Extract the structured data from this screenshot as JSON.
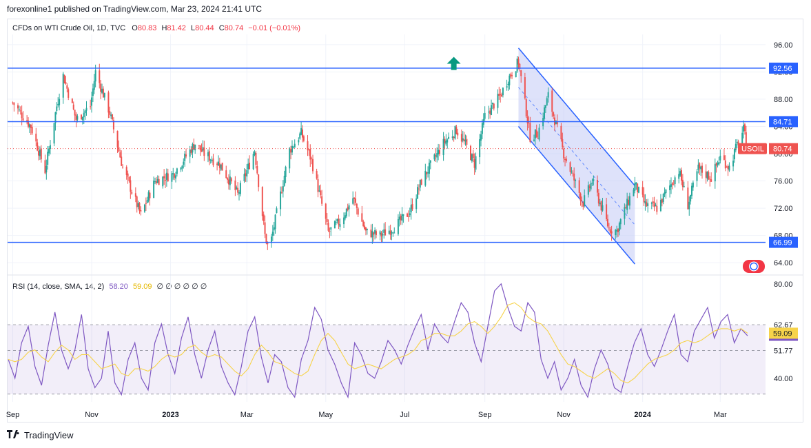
{
  "header": {
    "published": "forexonline1 published on TradingView.com, Mar 23, 2024 21:41 UTC"
  },
  "legend": {
    "symbol": "CFDs on WTI Crude Oil, 1D, TVC",
    "open_label": "O",
    "open": "80.83",
    "high_label": "H",
    "high": "81.42",
    "low_label": "L",
    "low": "80.44",
    "close_label": "C",
    "close": "80.74",
    "change": "−0.01 (−0.01%)"
  },
  "rsi_legend": {
    "label": "RSI (14, close, SMA, 14, 2)",
    "rsi": "58.20",
    "sma": "59.09",
    "empty": "∅ ∅ ∅ ∅ ∅ ∅"
  },
  "footer": {
    "brand": "TradingView"
  },
  "colors": {
    "up": "#26a69a",
    "down": "#ef5350",
    "level_line": "#2962ff",
    "rsi": "#7e57c2",
    "rsi_sma": "#f7d34a",
    "channel_fill": "#c3cbf5"
  },
  "chart_data": [
    {
      "type": "candlestick",
      "title": "",
      "symbol_tag": "USOIL",
      "last_price": 80.74,
      "ylim": [
        62.5,
        97.5
      ],
      "y_ticks": [
        "96.00",
        "92.00",
        "88.00",
        "84.00",
        "80.00",
        "76.00",
        "72.00",
        "68.00",
        "64.00"
      ],
      "x_ticks": [
        {
          "label": "Sep",
          "bold": false
        },
        {
          "label": "Nov",
          "bold": false
        },
        {
          "label": "2023",
          "bold": true
        },
        {
          "label": "Mar",
          "bold": false
        },
        {
          "label": "May",
          "bold": false
        },
        {
          "label": "Jul",
          "bold": false
        },
        {
          "label": "Sep",
          "bold": false
        },
        {
          "label": "Nov",
          "bold": false
        },
        {
          "label": "2024",
          "bold": true
        },
        {
          "label": "Mar",
          "bold": false
        }
      ],
      "horizontal_levels": [
        {
          "value": 92.56,
          "label": "92.56"
        },
        {
          "value": 84.71,
          "label": "84.71"
        },
        {
          "value": 66.99,
          "label": "66.99"
        }
      ],
      "price_tags": [
        {
          "value": 80.74,
          "label": "80.74"
        }
      ],
      "annotation": "up-arrow above Aug 2023 highs; descending channel Sep–Dec 2023",
      "close_path": [
        [
          "2022-09-01",
          87.5
        ],
        [
          "2022-09-15",
          84.0
        ],
        [
          "2022-09-26",
          77.5
        ],
        [
          "2022-10-05",
          87.0
        ],
        [
          "2022-10-10",
          91.5
        ],
        [
          "2022-10-20",
          85.0
        ],
        [
          "2022-10-31",
          87.0
        ],
        [
          "2022-11-04",
          92.0
        ],
        [
          "2022-11-15",
          86.0
        ],
        [
          "2022-11-25",
          78.0
        ],
        [
          "2022-12-09",
          71.0
        ],
        [
          "2022-12-20",
          76.0
        ],
        [
          "2023-01-03",
          77.0
        ],
        [
          "2023-01-20",
          81.5
        ],
        [
          "2023-01-27",
          80.0
        ],
        [
          "2023-02-08",
          78.5
        ],
        [
          "2023-02-22",
          74.0
        ],
        [
          "2023-03-07",
          80.5
        ],
        [
          "2023-03-15",
          68.0
        ],
        [
          "2023-03-17",
          66.5
        ],
        [
          "2023-03-20",
          67.5
        ],
        [
          "2023-04-03",
          80.5
        ],
        [
          "2023-04-12",
          83.0
        ],
        [
          "2023-04-20",
          79.0
        ],
        [
          "2023-05-03",
          68.5
        ],
        [
          "2023-05-12",
          70.0
        ],
        [
          "2023-05-22",
          73.5
        ],
        [
          "2023-06-01",
          68.5
        ],
        [
          "2023-06-12",
          68.0
        ],
        [
          "2023-06-23",
          69.2
        ],
        [
          "2023-07-05",
          71.5
        ],
        [
          "2023-07-14",
          76.0
        ],
        [
          "2023-07-31",
          81.5
        ],
        [
          "2023-08-10",
          83.5
        ],
        [
          "2023-08-18",
          81.0
        ],
        [
          "2023-08-24",
          78.5
        ],
        [
          "2023-09-01",
          85.5
        ],
        [
          "2023-09-13",
          88.5
        ],
        [
          "2023-09-19",
          91.0
        ],
        [
          "2023-09-27",
          93.5
        ],
        [
          "2023-10-06",
          82.5
        ],
        [
          "2023-10-12",
          83.0
        ],
        [
          "2023-10-20",
          88.5
        ],
        [
          "2023-11-01",
          80.0
        ],
        [
          "2023-11-16",
          72.8
        ],
        [
          "2023-11-23",
          76.0
        ],
        [
          "2023-12-06",
          69.0
        ],
        [
          "2023-12-12",
          68.7
        ],
        [
          "2023-12-26",
          75.5
        ],
        [
          "2024-01-03",
          72.5
        ],
        [
          "2024-01-12",
          72.0
        ],
        [
          "2024-01-29",
          77.5
        ],
        [
          "2024-02-05",
          72.5
        ],
        [
          "2024-02-13",
          77.8
        ],
        [
          "2024-02-23",
          76.5
        ],
        [
          "2024-03-01",
          79.5
        ],
        [
          "2024-03-08",
          78.0
        ],
        [
          "2024-03-14",
          81.3
        ],
        [
          "2024-03-19",
          83.5
        ],
        [
          "2024-03-22",
          80.74
        ]
      ]
    },
    {
      "type": "line",
      "title": "RSI (14, close, SMA, 14, 2)",
      "ylim": [
        30,
        82
      ],
      "y_ticks": [
        "80.00",
        "62.67",
        "51.77",
        "40.00"
      ],
      "band": [
        33.3,
        62.67
      ],
      "mid_line": 51.77,
      "series": [
        {
          "name": "RSI",
          "last": 58.2,
          "values": [
            48,
            40,
            55,
            62,
            45,
            37,
            54,
            68,
            52,
            44,
            52,
            67,
            44,
            36,
            40,
            60,
            38,
            33,
            48,
            55,
            40,
            35,
            55,
            63,
            50,
            42,
            57,
            66,
            50,
            40,
            52,
            60,
            45,
            38,
            33,
            45,
            60,
            66,
            49,
            38,
            50,
            47,
            36,
            32,
            48,
            56,
            70,
            65,
            52,
            46,
            38,
            32,
            55,
            50,
            42,
            40,
            47,
            56,
            52,
            46,
            54,
            61,
            67,
            52,
            63,
            58,
            55,
            64,
            72,
            68,
            55,
            47,
            62,
            77,
            80,
            70,
            62,
            60,
            72,
            68,
            48,
            40,
            47,
            35,
            40,
            48,
            37,
            32,
            44,
            52,
            46,
            36,
            34,
            45,
            55,
            61,
            50,
            45,
            52,
            60,
            67,
            50,
            47,
            60,
            65,
            70,
            57,
            64,
            67,
            55,
            61,
            58
          ]
        },
        {
          "name": "SMA",
          "last": 59.09,
          "values": [
            48,
            47,
            48,
            51,
            52,
            49,
            47,
            51,
            54,
            52,
            48,
            50,
            50,
            47,
            44,
            45,
            46,
            42,
            41,
            44,
            44,
            43,
            45,
            48,
            50,
            49,
            50,
            53,
            54,
            51,
            49,
            50,
            49,
            46,
            43,
            41,
            44,
            50,
            54,
            51,
            47,
            46,
            44,
            42,
            41,
            43,
            50,
            56,
            59,
            56,
            51,
            46,
            44,
            45,
            46,
            45,
            44,
            46,
            48,
            49,
            50,
            52,
            56,
            57,
            59,
            59,
            58,
            58,
            60,
            63,
            64,
            62,
            59,
            62,
            66,
            71,
            72,
            70,
            66,
            64,
            63,
            60,
            55,
            50,
            46,
            45,
            43,
            41,
            40,
            42,
            44,
            42,
            39,
            38,
            40,
            43,
            46,
            48,
            49,
            50,
            52,
            55,
            56,
            55,
            56,
            58,
            60,
            61,
            61,
            60,
            61,
            59.09
          ]
        }
      ]
    }
  ]
}
